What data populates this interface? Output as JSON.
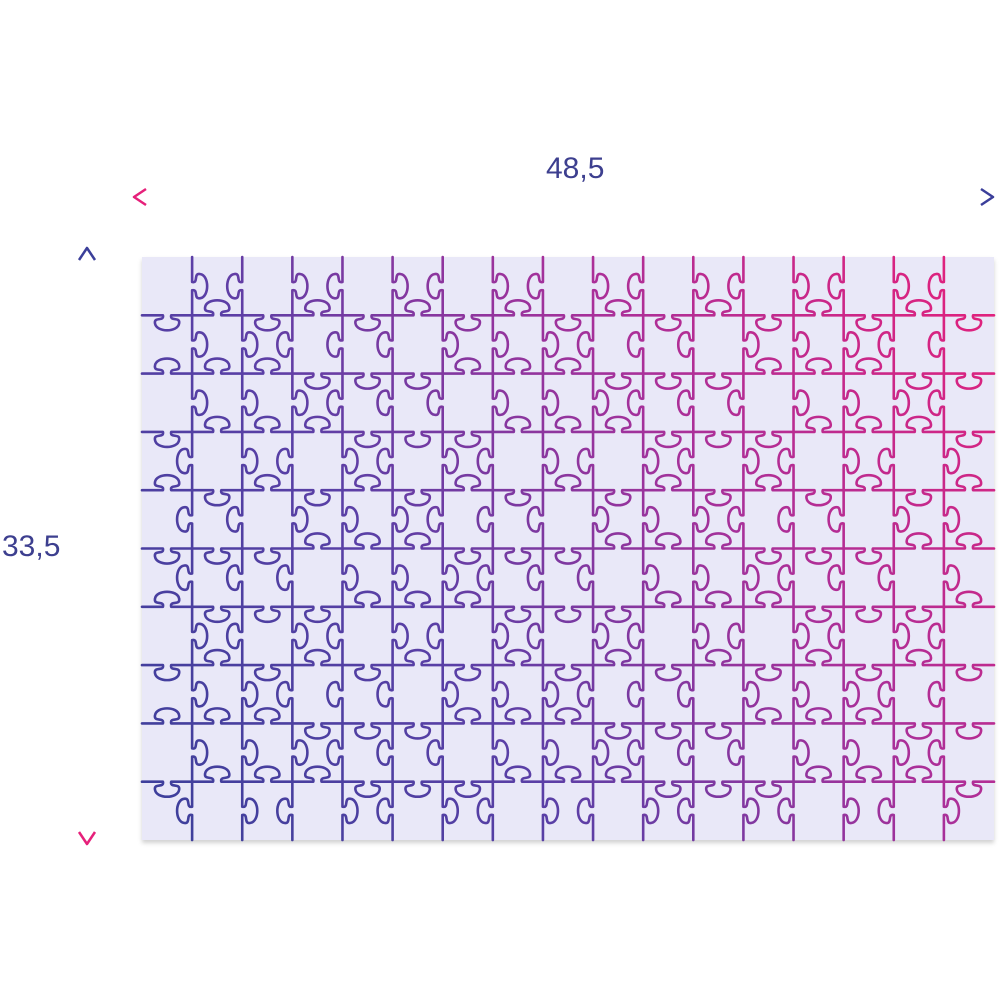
{
  "dimensions": {
    "width": "48,5",
    "height": "33,5"
  },
  "puzzle": {
    "columns": 17,
    "rows": 10,
    "board_color": "#e9e8f8",
    "stroke_start_color": "#3b3f9a",
    "stroke_end_color": "#e6207a"
  },
  "arrows": {
    "start_color": "#e6207a",
    "end_color": "#3b3f9a"
  }
}
